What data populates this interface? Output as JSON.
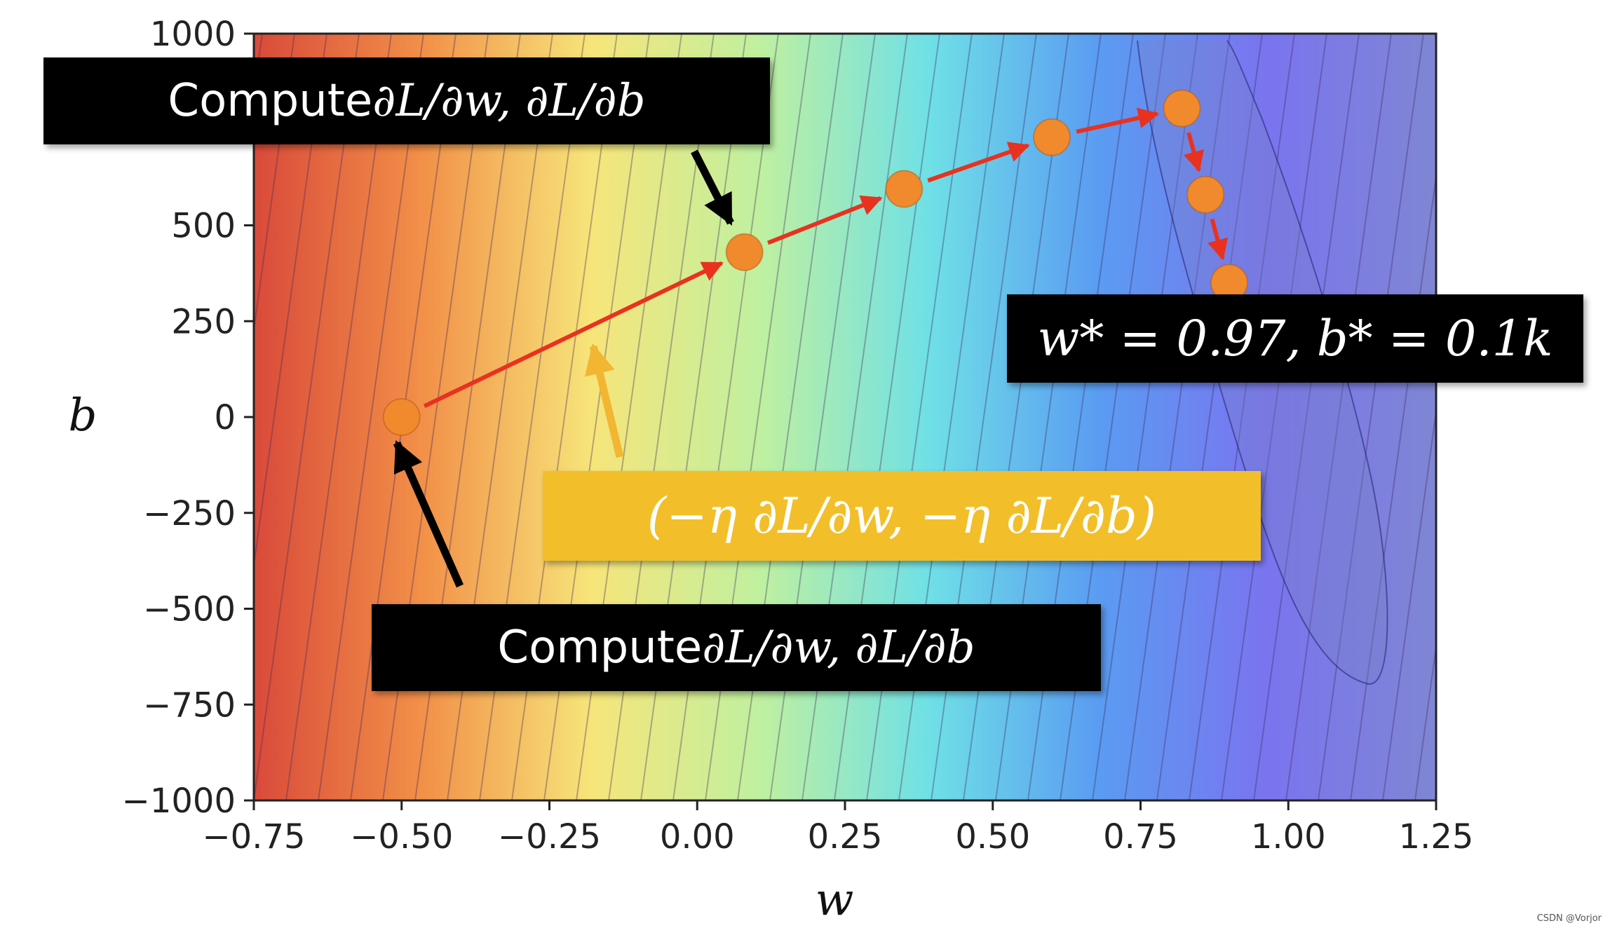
{
  "chart_data": {
    "type": "contour",
    "xlabel": "w",
    "ylabel": "b",
    "xlim": [
      -0.75,
      1.25
    ],
    "ylim": [
      -1000,
      1000
    ],
    "x_ticks": [
      -0.75,
      -0.5,
      -0.25,
      0.0,
      0.25,
      0.5,
      0.75,
      1.0,
      1.25
    ],
    "x_tick_labels": [
      "−0.75",
      "−0.50",
      "−0.25",
      "0.00",
      "0.25",
      "0.50",
      "0.75",
      "1.00",
      "1.25"
    ],
    "y_ticks": [
      1000,
      500,
      250,
      0,
      -250,
      -500,
      -750,
      -1000
    ],
    "y_tick_labels": [
      "1000",
      "500",
      "250",
      "0",
      "−250",
      "−500",
      "−750",
      "−1000"
    ],
    "colormap": [
      "#d94a3a",
      "#f29048",
      "#f7e57a",
      "#bff0a0",
      "#6fe0e6",
      "#5a9cf2",
      "#7a74ef",
      "#7f86d3"
    ],
    "path_color": "#e8321f",
    "point_color": "#f08a2c",
    "path": [
      {
        "w": -0.5,
        "b": 0
      },
      {
        "w": 0.08,
        "b": 430
      },
      {
        "w": 0.35,
        "b": 595
      },
      {
        "w": 0.6,
        "b": 730
      },
      {
        "w": 0.82,
        "b": 805
      },
      {
        "w": 0.86,
        "b": 580
      },
      {
        "w": 0.9,
        "b": 350
      }
    ]
  },
  "annotations": {
    "top_box": {
      "word": "Compute ",
      "math": "∂L/∂w, ∂L/∂b"
    },
    "bottom_box": {
      "word": "Compute ",
      "math": "∂L/∂w, ∂L/∂b"
    },
    "optimum_box": {
      "math": "w* = 0.97, b* = 0.1k"
    },
    "step_box": {
      "math": "(−η ∂L/∂w, −η ∂L/∂b)"
    },
    "step_arrow_color": "#f2b632",
    "pointer_arrow_color": "#000000",
    "step_box_color": "#f2bf2a"
  },
  "watermark": "CSDN @Vorjor"
}
